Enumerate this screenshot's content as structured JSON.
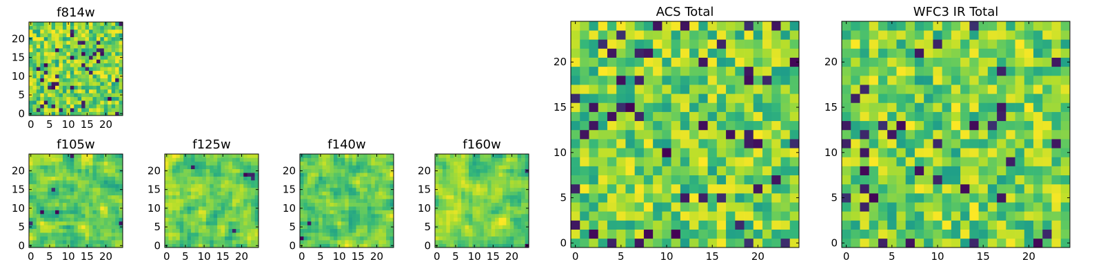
{
  "figure": {
    "description_colormap": "viridis"
  },
  "colors": {
    "palette": [
      "#440154",
      "#30688e",
      "#1f9e89",
      "#35b779",
      "#6ece58",
      "#b5de2b",
      "#fde725"
    ]
  },
  "chart_data": [
    {
      "type": "heatmap",
      "title": "f814w",
      "size": 25,
      "seed": 11,
      "smooth": 0,
      "xticks": [
        "0",
        "5",
        "10",
        "15",
        "20"
      ],
      "yticks": [
        "0",
        "5",
        "10",
        "15",
        "20"
      ],
      "xlim": [
        0,
        24
      ],
      "ylim": [
        0,
        24
      ],
      "colormap": "viridis"
    },
    {
      "type": "heatmap",
      "title": "f105w",
      "size": 25,
      "seed": 23,
      "smooth": 1,
      "xticks": [
        "0",
        "5",
        "10",
        "15",
        "20"
      ],
      "yticks": [
        "0",
        "5",
        "10",
        "15",
        "20"
      ],
      "xlim": [
        0,
        24
      ],
      "ylim": [
        0,
        24
      ],
      "colormap": "viridis"
    },
    {
      "type": "heatmap",
      "title": "f125w",
      "size": 25,
      "seed": 37,
      "smooth": 1,
      "xticks": [
        "0",
        "5",
        "10",
        "15",
        "20"
      ],
      "yticks": [
        "0",
        "5",
        "10",
        "15",
        "20"
      ],
      "xlim": [
        0,
        24
      ],
      "ylim": [
        0,
        24
      ],
      "colormap": "viridis"
    },
    {
      "type": "heatmap",
      "title": "f140w",
      "size": 25,
      "seed": 41,
      "smooth": 1,
      "xticks": [
        "0",
        "5",
        "10",
        "15",
        "20"
      ],
      "yticks": [
        "0",
        "5",
        "10",
        "15",
        "20"
      ],
      "xlim": [
        0,
        24
      ],
      "ylim": [
        0,
        24
      ],
      "colormap": "viridis"
    },
    {
      "type": "heatmap",
      "title": "f160w",
      "size": 25,
      "seed": 53,
      "smooth": 1,
      "xticks": [
        "0",
        "5",
        "10",
        "15",
        "20"
      ],
      "yticks": [
        "0",
        "5",
        "10",
        "15",
        "20"
      ],
      "xlim": [
        0,
        24
      ],
      "ylim": [
        0,
        24
      ],
      "colormap": "viridis"
    },
    {
      "type": "heatmap",
      "title": "ACS Total",
      "size": 25,
      "seed": 67,
      "smooth": 0,
      "xticks": [
        "0",
        "5",
        "10",
        "15",
        "20"
      ],
      "yticks": [
        "0",
        "5",
        "10",
        "15",
        "20"
      ],
      "xlim": [
        0,
        24
      ],
      "ylim": [
        0,
        24
      ],
      "colormap": "viridis"
    },
    {
      "type": "heatmap",
      "title": "WFC3 IR Total",
      "size": 25,
      "seed": 79,
      "smooth": 0,
      "xticks": [
        "0",
        "5",
        "10",
        "15",
        "20"
      ],
      "yticks": [
        "0",
        "5",
        "10",
        "15",
        "20"
      ],
      "xlim": [
        0,
        24
      ],
      "ylim": [
        0,
        24
      ],
      "colormap": "viridis"
    }
  ]
}
